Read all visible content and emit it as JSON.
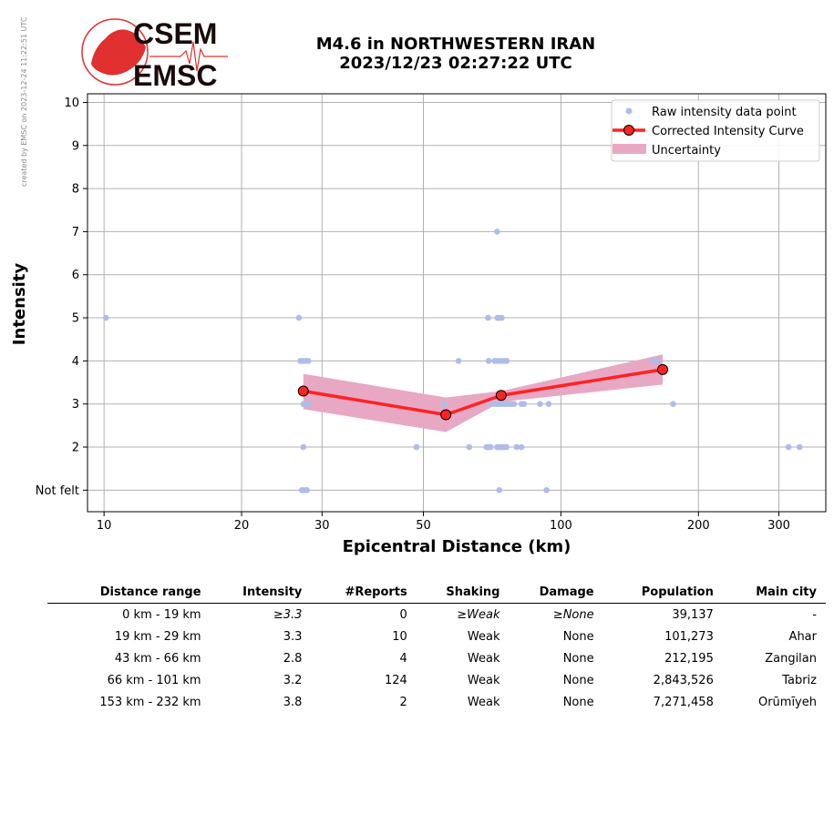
{
  "side_note": "created by EMSC on 2023-12-24 11:22:51 UTC",
  "logo": {
    "line1": "CSEM",
    "line2": "EMSC",
    "brand_color": "#e03030",
    "text_color": "#1a0a0a"
  },
  "title": {
    "line1": "M4.6 in NORTHWESTERN IRAN",
    "line2": "2023/12/23 02:27:22 UTC"
  },
  "colors": {
    "raw": "#aebde8",
    "curve": "#ff2222",
    "uncertainty": "#e8a8c4",
    "grid": "#b0b0b0"
  },
  "chart_data": {
    "type": "scatter",
    "xlabel": "Epicentral Distance (km)",
    "ylabel": "Intensity",
    "x_scale": "log",
    "xlim": [
      9.2,
      380
    ],
    "ylim": [
      0.5,
      10.2
    ],
    "x_ticks": [
      {
        "value": 10,
        "label": "10"
      },
      {
        "value": 20,
        "label": "20"
      },
      {
        "value": 30,
        "label": "30"
      },
      {
        "value": 50,
        "label": "50"
      },
      {
        "value": 100,
        "label": "100"
      },
      {
        "value": 200,
        "label": "200"
      },
      {
        "value": 300,
        "label": "300"
      }
    ],
    "y_ticks": [
      {
        "value": 1,
        "label": "Not felt"
      },
      {
        "value": 2,
        "label": "2"
      },
      {
        "value": 3,
        "label": "3"
      },
      {
        "value": 4,
        "label": "4"
      },
      {
        "value": 5,
        "label": "5"
      },
      {
        "value": 6,
        "label": "6"
      },
      {
        "value": 7,
        "label": "7"
      },
      {
        "value": 8,
        "label": "8"
      },
      {
        "value": 9,
        "label": "9"
      },
      {
        "value": 10,
        "label": "10"
      }
    ],
    "grid": true,
    "legend_position": "top-right",
    "legend": [
      "Raw intensity data point",
      "Corrected Intensity Curve",
      "Uncertainty"
    ],
    "raw_points": [
      [
        10.1,
        5
      ],
      [
        26.7,
        5
      ],
      [
        26.9,
        4
      ],
      [
        27.2,
        4
      ],
      [
        27.6,
        4
      ],
      [
        28.0,
        4
      ],
      [
        27.3,
        3
      ],
      [
        27.8,
        3
      ],
      [
        28.1,
        3
      ],
      [
        27.3,
        2
      ],
      [
        27.1,
        1
      ],
      [
        27.4,
        1
      ],
      [
        27.8,
        1
      ],
      [
        48.3,
        2
      ],
      [
        55.5,
        3
      ],
      [
        59.7,
        4
      ],
      [
        63.0,
        2
      ],
      [
        69.3,
        5
      ],
      [
        72.6,
        5
      ],
      [
        73.3,
        5
      ],
      [
        74.2,
        5
      ],
      [
        72.5,
        7
      ],
      [
        69.5,
        4
      ],
      [
        71.6,
        4
      ],
      [
        72.5,
        4
      ],
      [
        73.4,
        4
      ],
      [
        74.3,
        4
      ],
      [
        75.2,
        4
      ],
      [
        76.1,
        4
      ],
      [
        70.5,
        3
      ],
      [
        71.5,
        3
      ],
      [
        72.4,
        3
      ],
      [
        73.3,
        3
      ],
      [
        74.2,
        3
      ],
      [
        75.1,
        3
      ],
      [
        76.0,
        3
      ],
      [
        77.0,
        3
      ],
      [
        78.0,
        3
      ],
      [
        79.0,
        3
      ],
      [
        82.0,
        3
      ],
      [
        83.0,
        3
      ],
      [
        90.0,
        3
      ],
      [
        94.0,
        3
      ],
      [
        68.7,
        2
      ],
      [
        69.4,
        2
      ],
      [
        70.2,
        2
      ],
      [
        72.5,
        2
      ],
      [
        73.4,
        2
      ],
      [
        74.2,
        2
      ],
      [
        75.1,
        2
      ],
      [
        76.0,
        2
      ],
      [
        80.0,
        2
      ],
      [
        82.0,
        2
      ],
      [
        73.3,
        1
      ],
      [
        93.0,
        1
      ],
      [
        176,
        3
      ],
      [
        159,
        4
      ],
      [
        163,
        4
      ],
      [
        315,
        2
      ],
      [
        333,
        2
      ]
    ],
    "curve": [
      {
        "x": 27.3,
        "y": 3.3,
        "low": 2.88,
        "high": 3.7
      },
      {
        "x": 56.0,
        "y": 2.75,
        "low": 2.35,
        "high": 3.15
      },
      {
        "x": 74.0,
        "y": 3.2,
        "low": 3.05,
        "high": 3.3
      },
      {
        "x": 167.0,
        "y": 3.8,
        "low": 3.45,
        "high": 4.15
      }
    ]
  },
  "table": {
    "headers": [
      "Distance range",
      "Intensity",
      "#Reports",
      "Shaking",
      "Damage",
      "Population",
      "Main city"
    ],
    "rows": [
      [
        "0 km -   19 km",
        "≥3.3",
        "0",
        "≥Weak",
        "≥None",
        "39,137",
        "-"
      ],
      [
        "19 km -   29 km",
        "3.3",
        "10",
        "Weak",
        "None",
        "101,273",
        "Ahar"
      ],
      [
        "43 km -   66 km",
        "2.8",
        "4",
        "Weak",
        "None",
        "212,195",
        "Zangilan"
      ],
      [
        "66 km -  101 km",
        "3.2",
        "124",
        "Weak",
        "None",
        "2,843,526",
        "Tabriz"
      ],
      [
        "153 km -  232 km",
        "3.8",
        "2",
        "Weak",
        "None",
        "7,271,458",
        "Orūmīyeh"
      ]
    ]
  }
}
